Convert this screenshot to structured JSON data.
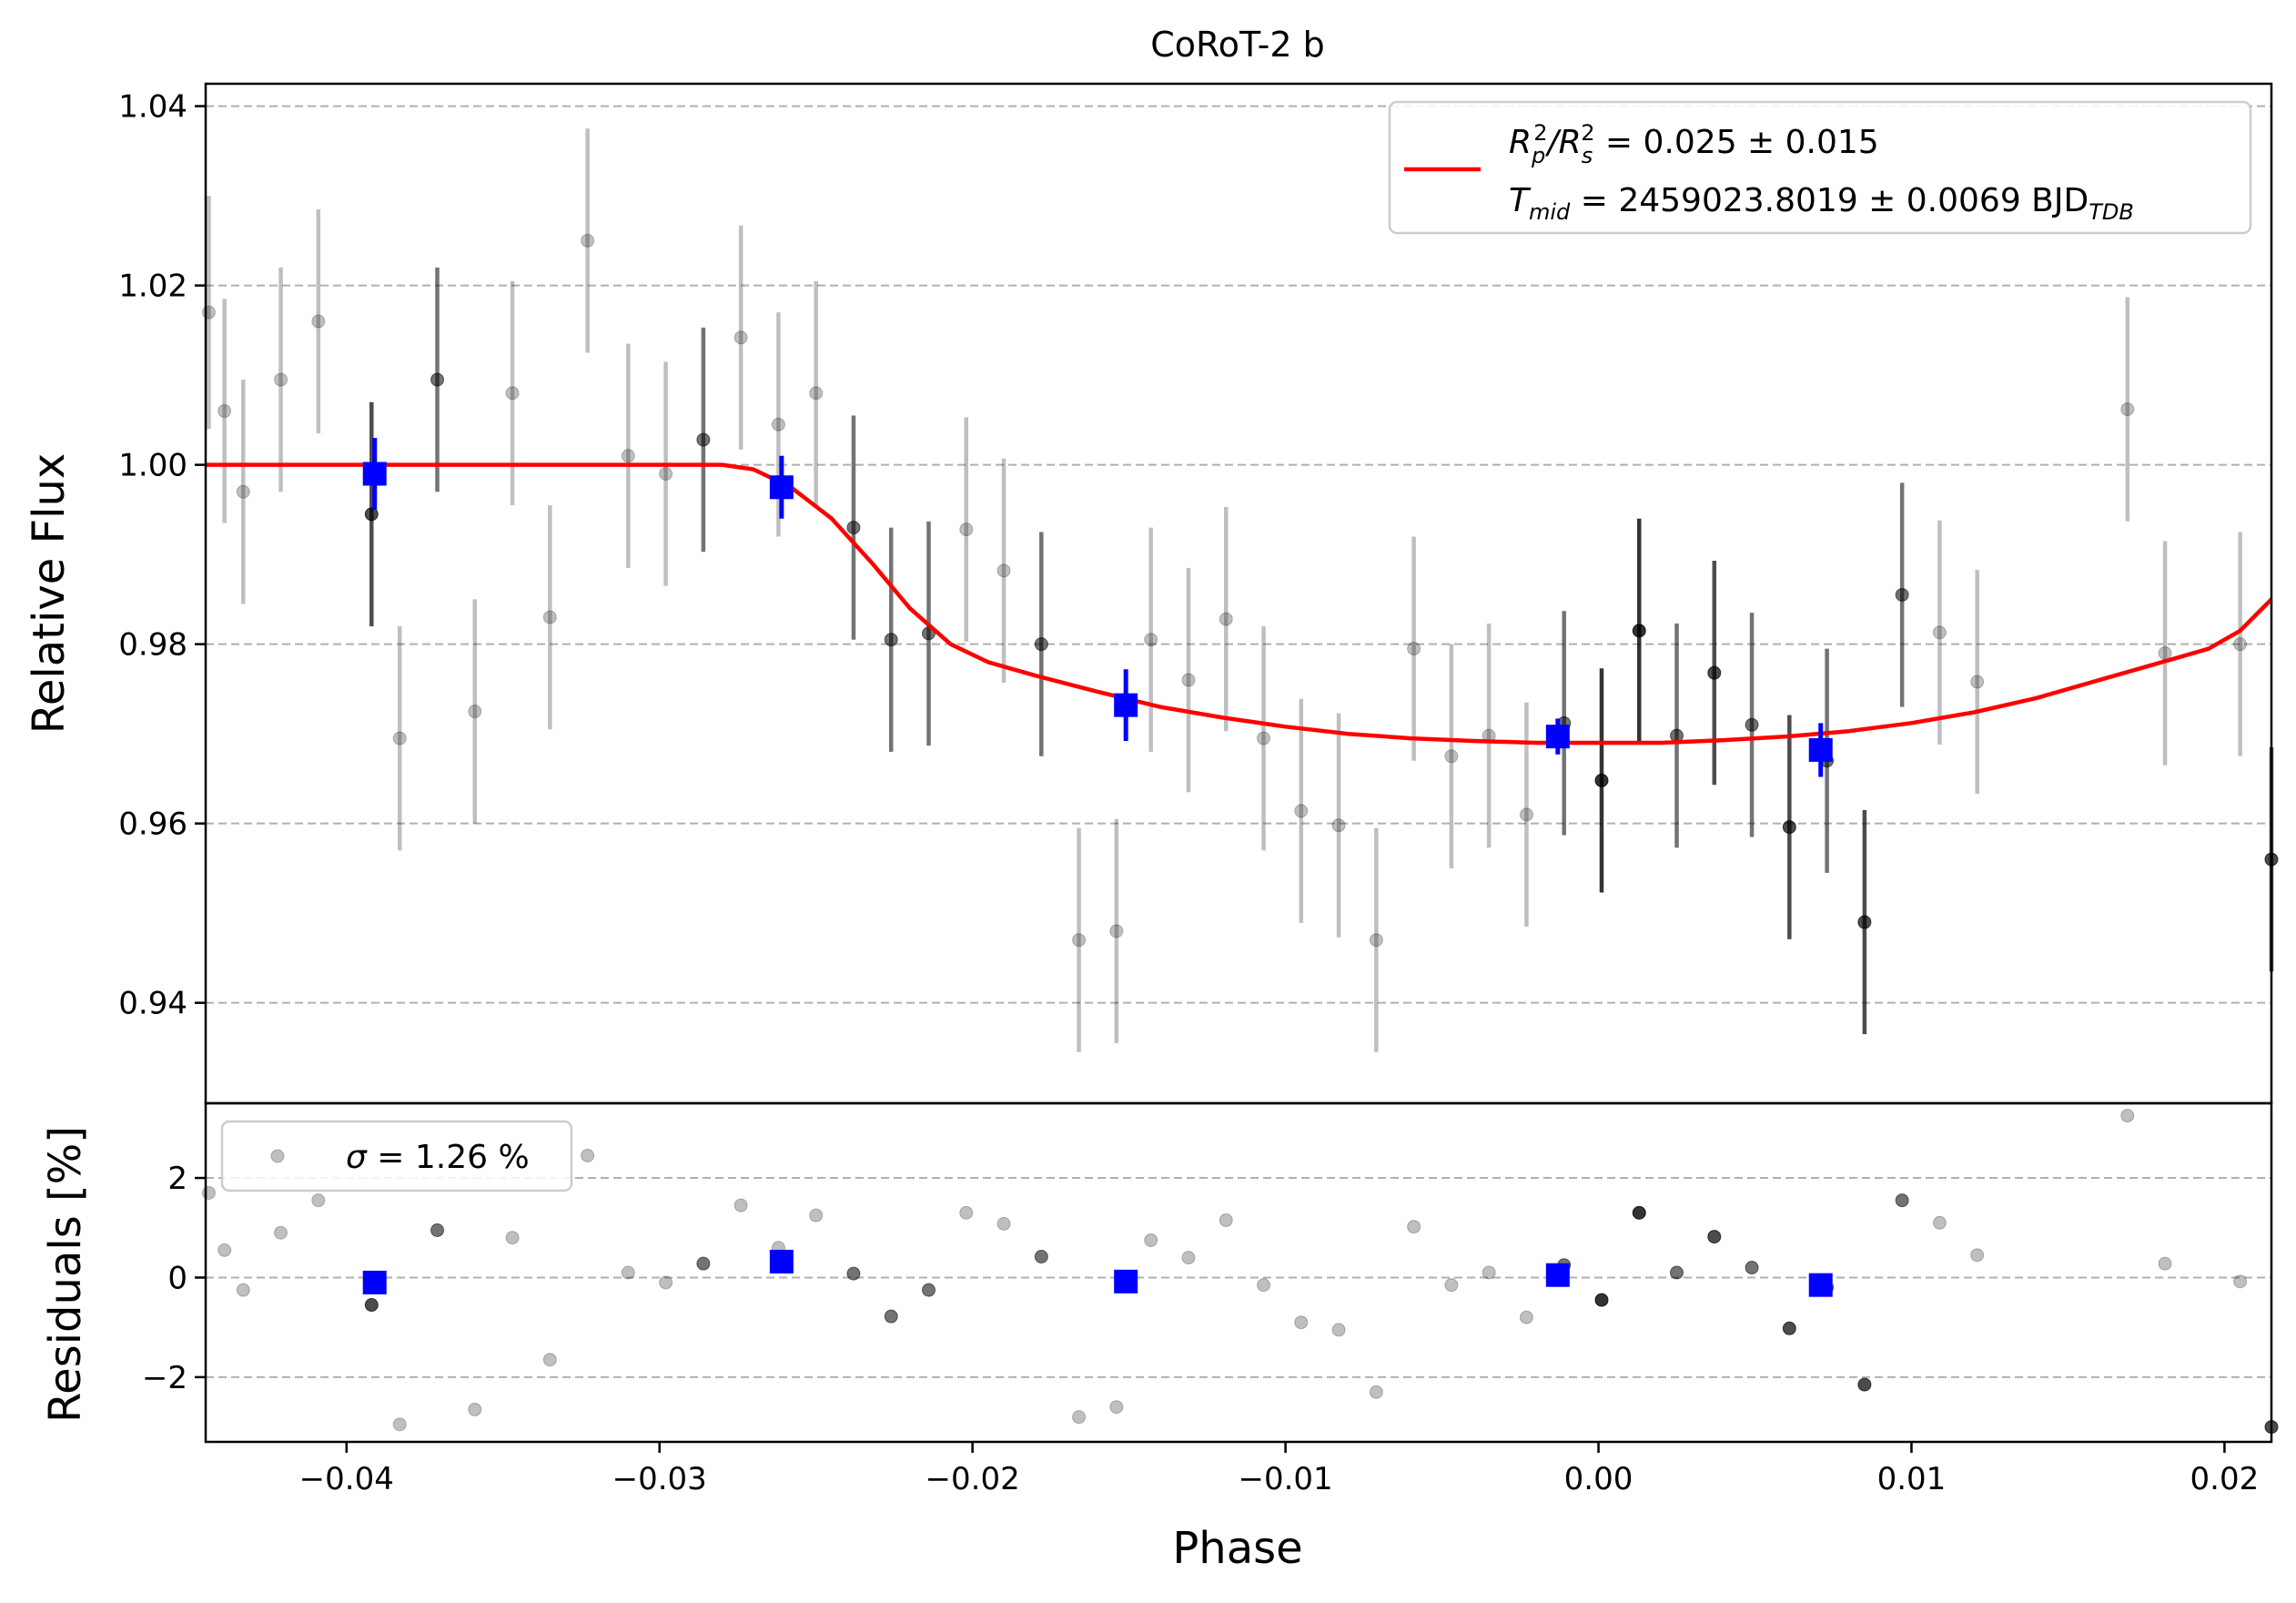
{
  "chart_data": [
    {
      "type": "scatter",
      "panel": "light-curve",
      "title": "CoRoT-2 b",
      "xlabel": "",
      "ylabel": "Relative Flux",
      "xlim": [
        -0.0445,
        0.0215
      ],
      "ylim": [
        0.9288,
        1.0425
      ],
      "yticks": [
        0.94,
        0.96,
        0.98,
        1.0,
        1.02,
        1.04
      ],
      "ytick_labels": [
        "0.94",
        "0.96",
        "0.98",
        "1.00",
        "1.02",
        "1.04"
      ],
      "grid": "y-dashed",
      "legend_position": "top-right",
      "legend": {
        "line1": [
          "R",
          "p",
          "2",
          "/R",
          "s",
          "2",
          " = 0.025 ± 0.015"
        ],
        "line2": [
          "T",
          "mid",
          " = 2459023.8019 ± 0.0069 BJD",
          "TDB"
        ]
      },
      "model": {
        "color": "#ff0000",
        "x": [
          -0.0445,
          -0.028,
          -0.027,
          -0.0258,
          -0.0245,
          -0.0232,
          -0.022,
          -0.0207,
          -0.0195,
          -0.018,
          -0.016,
          -0.014,
          -0.012,
          -0.01,
          -0.008,
          -0.006,
          -0.004,
          -0.002,
          0.0,
          0.002,
          0.004,
          0.006,
          0.008,
          0.01,
          0.012,
          0.014,
          0.016,
          0.018,
          0.0195,
          0.0205,
          0.0215
        ],
        "y": [
          1.0,
          1.0,
          0.9995,
          0.9975,
          0.994,
          0.989,
          0.984,
          0.98,
          0.978,
          0.9765,
          0.9747,
          0.973,
          0.9718,
          0.9708,
          0.97,
          0.9695,
          0.9692,
          0.969,
          0.969,
          0.969,
          0.9693,
          0.9697,
          0.9703,
          0.9712,
          0.9724,
          0.974,
          0.976,
          0.978,
          0.9795,
          0.9815,
          0.985
        ]
      },
      "raw": {
        "x": [
          -0.0444,
          -0.0439,
          -0.0433,
          -0.0421,
          -0.0409,
          -0.0392,
          -0.0383,
          -0.0371,
          -0.0359,
          -0.0347,
          -0.0335,
          -0.0323,
          -0.031,
          -0.0298,
          -0.0286,
          -0.0274,
          -0.0262,
          -0.025,
          -0.0238,
          -0.0226,
          -0.0214,
          -0.0202,
          -0.019,
          -0.0178,
          -0.0166,
          -0.0154,
          -0.0143,
          -0.0131,
          -0.0119,
          -0.0107,
          -0.0095,
          -0.0083,
          -0.0071,
          -0.0059,
          -0.0047,
          -0.0035,
          -0.0023,
          -0.0011,
          0.0001,
          0.0013,
          0.0025,
          0.0037,
          0.0049,
          0.0061,
          0.0073,
          0.0085,
          0.0097,
          0.0109,
          0.0121,
          0.0169,
          0.0181,
          0.0205,
          0.0215
        ],
        "y": [
          1.017,
          1.006,
          0.997,
          1.0095,
          1.016,
          0.9945,
          0.9695,
          1.0095,
          0.9725,
          1.008,
          0.983,
          1.025,
          1.001,
          0.999,
          1.0028,
          1.0142,
          1.0045,
          1.008,
          0.993,
          0.9805,
          0.9812,
          0.9928,
          0.9882,
          0.98,
          0.947,
          0.948,
          0.9805,
          0.976,
          0.9828,
          0.9695,
          0.9614,
          0.9598,
          0.947,
          0.9795,
          0.9675,
          0.9698,
          0.961,
          0.9712,
          0.9648,
          0.9815,
          0.9698,
          0.9768,
          0.971,
          0.9596,
          0.967,
          0.949,
          0.9855,
          0.9813,
          0.9758,
          1.0062,
          0.979,
          0.98,
          0.956
        ],
        "err": [
          0.013,
          0.0125,
          0.0125,
          0.0125,
          0.0125,
          0.0125,
          0.0125,
          0.0125,
          0.0125,
          0.0125,
          0.0125,
          0.0125,
          0.0125,
          0.0125,
          0.0125,
          0.0125,
          0.0125,
          0.0125,
          0.0125,
          0.0125,
          0.0125,
          0.0125,
          0.0125,
          0.0125,
          0.0125,
          0.0125,
          0.0125,
          0.0125,
          0.0125,
          0.0125,
          0.0125,
          0.0125,
          0.0125,
          0.0125,
          0.0125,
          0.0125,
          0.0125,
          0.0125,
          0.0125,
          0.0125,
          0.0125,
          0.0125,
          0.0125,
          0.0125,
          0.0125,
          0.0125,
          0.0125,
          0.0125,
          0.0125,
          0.0125,
          0.0125,
          0.0125,
          0.0125
        ],
        "shade": [
          0.25,
          0.25,
          0.25,
          0.25,
          0.25,
          0.7,
          0.25,
          0.55,
          0.25,
          0.25,
          0.25,
          0.25,
          0.25,
          0.25,
          0.55,
          0.25,
          0.25,
          0.25,
          0.55,
          0.55,
          0.55,
          0.25,
          0.25,
          0.55,
          0.25,
          0.25,
          0.25,
          0.25,
          0.25,
          0.25,
          0.25,
          0.25,
          0.25,
          0.25,
          0.25,
          0.25,
          0.25,
          0.55,
          0.8,
          0.8,
          0.55,
          0.7,
          0.55,
          0.7,
          0.55,
          0.7,
          0.55,
          0.25,
          0.25,
          0.25,
          0.25,
          0.25,
          0.7
        ]
      },
      "binned": {
        "color": "#0000ff",
        "x": [
          -0.0391,
          -0.0261,
          -0.0151,
          -0.0013,
          0.0071
        ],
        "y": [
          0.999,
          0.9975,
          0.9732,
          0.9697,
          0.9682
        ],
        "err": [
          0.004,
          0.0035,
          0.004,
          0.002,
          0.003
        ]
      }
    },
    {
      "type": "scatter",
      "panel": "residuals",
      "title": "",
      "xlabel": "Phase",
      "ylabel": "Residuals [%]",
      "xlim": [
        -0.0445,
        0.0215
      ],
      "ylim": [
        -3.3,
        3.5
      ],
      "xticks": [
        -0.04,
        -0.03,
        -0.02,
        -0.01,
        0.0,
        0.01,
        0.02
      ],
      "xtick_labels": [
        "−0.04",
        "−0.03",
        "−0.02",
        "−0.01",
        "0.00",
        "0.01",
        "0.02"
      ],
      "yticks": [
        -2,
        0,
        2
      ],
      "ytick_labels": [
        "−2",
        "0",
        "2"
      ],
      "grid": "y-dashed",
      "legend_position": "top-left",
      "legend": [
        "σ",
        " = 1.26 %"
      ],
      "raw": {
        "x": [
          -0.0444,
          -0.0439,
          -0.0433,
          -0.0421,
          -0.0409,
          -0.0392,
          -0.0383,
          -0.0371,
          -0.0359,
          -0.0347,
          -0.0335,
          -0.0323,
          -0.031,
          -0.0298,
          -0.0286,
          -0.0274,
          -0.0262,
          -0.025,
          -0.0238,
          -0.0226,
          -0.0214,
          -0.0202,
          -0.019,
          -0.0178,
          -0.0166,
          -0.0154,
          -0.0143,
          -0.0131,
          -0.0119,
          -0.0107,
          -0.0095,
          -0.0083,
          -0.0071,
          -0.0059,
          -0.0047,
          -0.0035,
          -0.0023,
          -0.0011,
          0.0001,
          0.0013,
          0.0025,
          0.0037,
          0.0049,
          0.0061,
          0.0073,
          0.0085,
          0.0097,
          0.0109,
          0.0121,
          0.0169,
          0.0181,
          0.0205,
          0.0215
        ],
        "y": [
          1.7,
          0.55,
          -0.25,
          0.9,
          1.55,
          -0.55,
          -2.95,
          0.95,
          -2.65,
          0.8,
          -1.65,
          2.45,
          0.1,
          -0.1,
          0.28,
          1.45,
          0.6,
          1.25,
          0.08,
          -0.78,
          -0.25,
          1.3,
          1.08,
          0.42,
          -2.8,
          -2.6,
          0.75,
          0.4,
          1.15,
          -0.15,
          -0.9,
          -1.05,
          -2.3,
          1.02,
          -0.15,
          0.1,
          -0.8,
          0.25,
          -0.45,
          1.3,
          0.1,
          0.82,
          0.2,
          -1.02,
          -0.2,
          -2.15,
          1.55,
          1.1,
          0.45,
          3.25,
          0.28,
          -0.08,
          -3.0
        ],
        "shade": [
          0.25,
          0.25,
          0.25,
          0.25,
          0.25,
          0.7,
          0.25,
          0.55,
          0.25,
          0.25,
          0.25,
          0.25,
          0.25,
          0.25,
          0.55,
          0.25,
          0.25,
          0.25,
          0.55,
          0.55,
          0.55,
          0.25,
          0.25,
          0.55,
          0.25,
          0.25,
          0.25,
          0.25,
          0.25,
          0.25,
          0.25,
          0.25,
          0.25,
          0.25,
          0.25,
          0.25,
          0.25,
          0.55,
          0.8,
          0.8,
          0.55,
          0.7,
          0.55,
          0.7,
          0.55,
          0.7,
          0.55,
          0.25,
          0.25,
          0.25,
          0.25,
          0.25,
          0.7
        ]
      },
      "binned": {
        "color": "#0000ff",
        "x": [
          -0.0391,
          -0.0261,
          -0.0151,
          -0.0013,
          0.0071
        ],
        "y": [
          -0.1,
          0.32,
          -0.08,
          0.05,
          -0.15
        ]
      }
    }
  ]
}
